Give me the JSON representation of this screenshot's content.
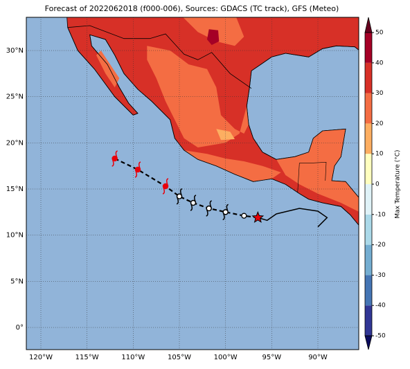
{
  "map": {
    "title": "Forecast of 2022062018 (f000-006), Sources: GDACS (TC track), GFS (Meteo)",
    "lat_ticks": [
      {
        "value": 0,
        "label": "0°"
      },
      {
        "value": 5,
        "label": "5°N"
      },
      {
        "value": 10,
        "label": "10°N"
      },
      {
        "value": 15,
        "label": "15°N"
      },
      {
        "value": 20,
        "label": "20°N"
      },
      {
        "value": 25,
        "label": "25°N"
      },
      {
        "value": 30,
        "label": "30°N"
      }
    ],
    "lon_ticks": [
      {
        "value": -120,
        "label": "120°W"
      },
      {
        "value": -115,
        "label": "115°W"
      },
      {
        "value": -110,
        "label": "110°W"
      },
      {
        "value": -105,
        "label": "105°W"
      },
      {
        "value": -100,
        "label": "100°W"
      },
      {
        "value": -95,
        "label": "95°W"
      },
      {
        "value": -90,
        "label": "90°W"
      }
    ],
    "colorbar": {
      "label": "Max Temperature (°C)",
      "ticks": [
        -50,
        -40,
        -30,
        -20,
        -10,
        0,
        10,
        20,
        30,
        40,
        50
      ],
      "colors": [
        "#313695",
        "#4575b4",
        "#74add1",
        "#abd9e9",
        "#e0f3f8",
        "#ffffbf",
        "#fdae61",
        "#f46d43",
        "#d73027",
        "#a50026"
      ]
    }
  }
}
